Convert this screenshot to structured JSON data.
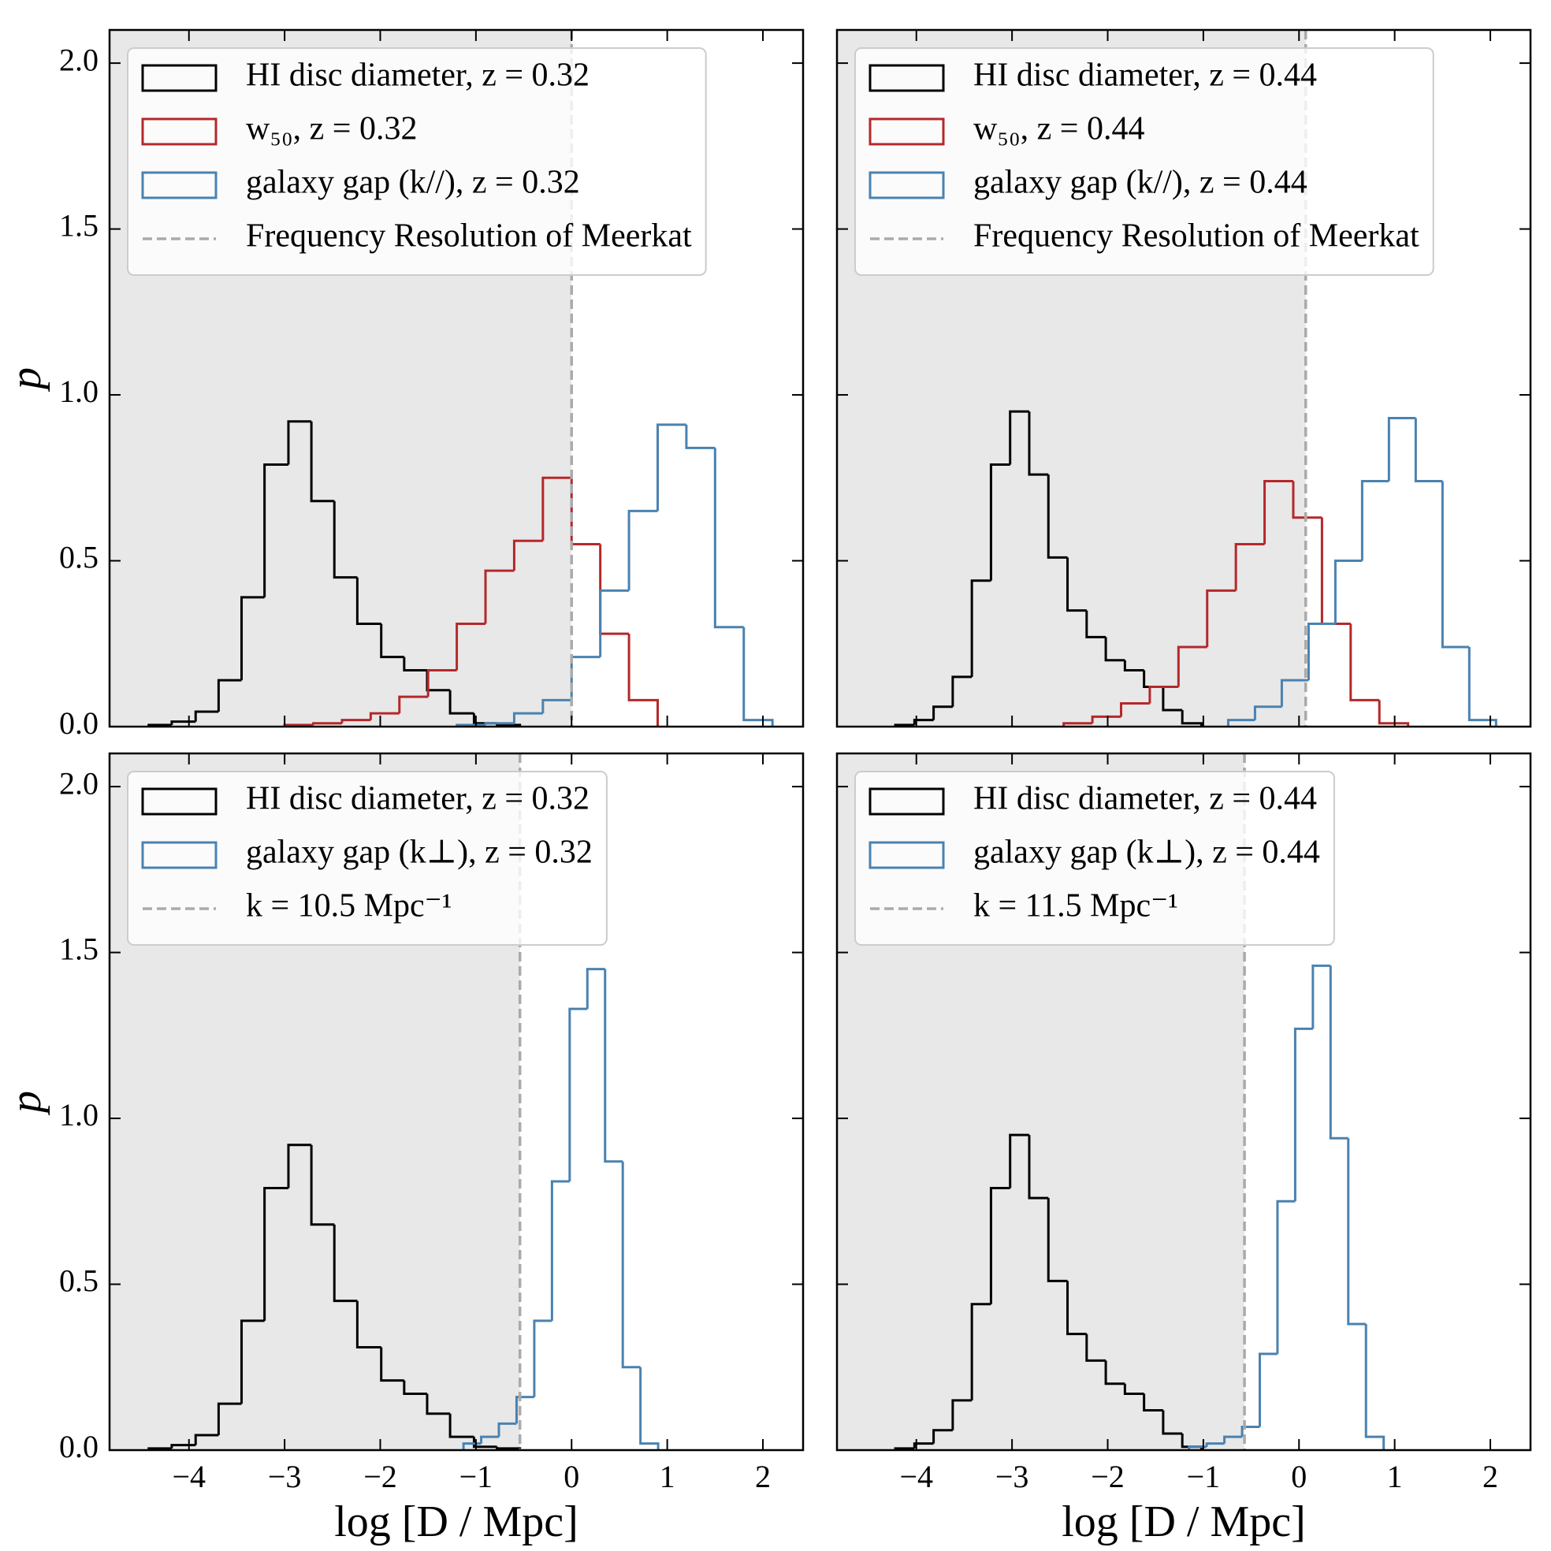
{
  "chart_data": [
    {
      "type": "histogram",
      "xlim": [
        -4.83,
        2.42
      ],
      "ylim": [
        0,
        2.1
      ],
      "xticks": [
        -4,
        -3,
        -2,
        -1,
        0,
        1,
        2
      ],
      "xtick_labels": false,
      "yticks": [
        {
          "value": 0,
          "label": "0.0"
        },
        {
          "value": 0.5,
          "label": "0.5"
        },
        {
          "value": 1,
          "label": "1.0"
        },
        {
          "value": 1.5,
          "label": "1.5"
        },
        {
          "value": 2,
          "label": "2.0"
        }
      ],
      "ytick_labels": true,
      "ylabel": "p",
      "legend": "upper left",
      "series": [
        {
          "name": "HI disc diameter, z = 0.32",
          "color": "#000000",
          "bins": [
            -4.42,
            -4.18,
            -3.93,
            -3.69,
            -3.45,
            -3.21,
            -2.96,
            -2.72,
            -2.48,
            -2.24,
            -1.99,
            -1.75,
            -1.51,
            -1.27,
            -1.02,
            -0.78,
            -0.54
          ],
          "values": [
            0.005,
            0.015,
            0.045,
            0.14,
            0.39,
            0.79,
            0.92,
            0.68,
            0.45,
            0.31,
            0.21,
            0.17,
            0.11,
            0.04,
            0.01,
            0.005
          ]
        },
        {
          "name": "w₅₀,  z = 0.32",
          "color": "#b5282a",
          "bins": [
            -3.0,
            -2.7,
            -2.4,
            -2.1,
            -1.8,
            -1.5,
            -1.2,
            -0.9,
            -0.6,
            -0.3,
            0,
            0.3,
            0.6,
            0.9
          ],
          "values": [
            0.005,
            0.01,
            0.02,
            0.04,
            0.09,
            0.17,
            0.31,
            0.47,
            0.56,
            0.75,
            0.55,
            0.28,
            0.08
          ]
        },
        {
          "name": "galaxy gap (k//), z = 0.32",
          "color": "#4a82b0",
          "bins": [
            -1.2,
            -0.9,
            -0.6,
            -0.3,
            0,
            0.3,
            0.6,
            0.9,
            1.2,
            1.5,
            1.8,
            2.1
          ],
          "values": [
            0.005,
            0.01,
            0.04,
            0.08,
            0.21,
            0.41,
            0.65,
            0.91,
            0.84,
            0.3,
            0.02
          ]
        }
      ],
      "vline": {
        "x": 0,
        "label": "Frequency Resolution of Meerkat",
        "color": "#aaaaaa"
      },
      "shade_left": true
    },
    {
      "type": "histogram",
      "xlim": [
        -4.83,
        2.42
      ],
      "ylim": [
        0,
        2.1
      ],
      "xticks": [
        -4,
        -3,
        -2,
        -1,
        0,
        1,
        2
      ],
      "xtick_labels": false,
      "yticks": [
        0,
        0.5,
        1,
        1.5,
        2
      ],
      "ytick_labels": false,
      "legend": "upper left",
      "series": [
        {
          "name": "HI disc diameter, z = 0.44",
          "color": "#000000",
          "bins": [
            -4.22,
            -4.02,
            -3.82,
            -3.62,
            -3.42,
            -3.22,
            -3.02,
            -2.82,
            -2.62,
            -2.42,
            -2.22,
            -2.02,
            -1.82,
            -1.62,
            -1.42,
            -1.22,
            -1.02
          ],
          "values": [
            0.005,
            0.02,
            0.06,
            0.15,
            0.44,
            0.79,
            0.95,
            0.76,
            0.51,
            0.35,
            0.27,
            0.2,
            0.17,
            0.12,
            0.05,
            0.01
          ]
        },
        {
          "name": "w₅₀,  z = 0.44",
          "color": "#b5282a",
          "bins": [
            -2.46,
            -2.16,
            -1.86,
            -1.56,
            -1.26,
            -0.96,
            -0.66,
            -0.36,
            -0.06,
            0.24,
            0.54,
            0.84,
            1.14
          ],
          "values": [
            0.01,
            0.03,
            0.07,
            0.12,
            0.24,
            0.41,
            0.55,
            0.74,
            0.63,
            0.31,
            0.08,
            0.01
          ]
        },
        {
          "name": "galaxy gap (k//), z = 0.44",
          "color": "#4a82b0",
          "bins": [
            -0.74,
            -0.46,
            -0.18,
            0.1,
            0.38,
            0.66,
            0.94,
            1.22,
            1.5,
            1.78,
            2.06
          ],
          "values": [
            0.02,
            0.06,
            0.14,
            0.31,
            0.5,
            0.74,
            0.93,
            0.74,
            0.24,
            0.02
          ]
        }
      ],
      "vline": {
        "x": 0.07,
        "label": "Frequency Resolution of Meerkat",
        "color": "#aaaaaa"
      },
      "shade_left": true
    },
    {
      "type": "histogram",
      "xlim": [
        -4.83,
        2.42
      ],
      "ylim": [
        0,
        2.1
      ],
      "xticks": [
        {
          "value": -4,
          "label": "−4"
        },
        {
          "value": -3,
          "label": "−3"
        },
        {
          "value": -2,
          "label": "−2"
        },
        {
          "value": -1,
          "label": "−1"
        },
        0,
        1,
        2
      ],
      "xtick_labels": true,
      "yticks": [
        {
          "value": 0,
          "label": "0.0"
        },
        {
          "value": 0.5,
          "label": "0.5"
        },
        {
          "value": 1,
          "label": "1.0"
        },
        {
          "value": 1.5,
          "label": "1.5"
        },
        {
          "value": 2,
          "label": "2.0"
        }
      ],
      "ytick_labels": true,
      "xlabel": "log [D / Mpc]",
      "ylabel": "p",
      "legend": "upper left",
      "series": [
        {
          "name": "HI disc diameter, z = 0.32",
          "color": "#000000",
          "bins": [
            -4.42,
            -4.18,
            -3.93,
            -3.69,
            -3.45,
            -3.21,
            -2.96,
            -2.72,
            -2.48,
            -2.24,
            -1.99,
            -1.75,
            -1.51,
            -1.27,
            -1.02,
            -0.78,
            -0.54
          ],
          "values": [
            0.005,
            0.015,
            0.045,
            0.14,
            0.39,
            0.79,
            0.92,
            0.68,
            0.45,
            0.31,
            0.21,
            0.17,
            0.11,
            0.04,
            0.01,
            0.005
          ]
        },
        {
          "name": "galaxy gap (k⊥), z = 0.32",
          "color": "#4a82b0",
          "bins": [
            -1.13,
            -0.945,
            -0.76,
            -0.575,
            -0.39,
            -0.205,
            -0.02,
            0.165,
            0.35,
            0.535,
            0.72,
            0.905
          ],
          "values": [
            0.02,
            0.04,
            0.08,
            0.16,
            0.39,
            0.81,
            1.33,
            1.45,
            0.87,
            0.25,
            0.02
          ]
        }
      ],
      "vline": {
        "x": -0.54,
        "label": "k = 10.5 Mpc⁻¹",
        "color": "#aaaaaa"
      },
      "shade_left": true
    },
    {
      "type": "histogram",
      "xlim": [
        -4.83,
        2.42
      ],
      "ylim": [
        0,
        2.1
      ],
      "xticks": [
        {
          "value": -4,
          "label": "−4"
        },
        {
          "value": -3,
          "label": "−3"
        },
        {
          "value": -2,
          "label": "−2"
        },
        {
          "value": -1,
          "label": "−1"
        },
        0,
        1,
        2
      ],
      "xtick_labels": true,
      "yticks": [
        0,
        0.5,
        1,
        1.5,
        2
      ],
      "ytick_labels": false,
      "xlabel": "log [D / Mpc]",
      "legend": "upper left",
      "series": [
        {
          "name": "HI disc diameter, z = 0.44",
          "color": "#000000",
          "bins": [
            -4.22,
            -4.02,
            -3.82,
            -3.62,
            -3.42,
            -3.22,
            -3.02,
            -2.82,
            -2.62,
            -2.42,
            -2.22,
            -2.02,
            -1.82,
            -1.62,
            -1.42,
            -1.22,
            -1.02
          ],
          "values": [
            0.005,
            0.02,
            0.06,
            0.15,
            0.44,
            0.79,
            0.95,
            0.76,
            0.51,
            0.35,
            0.27,
            0.2,
            0.17,
            0.12,
            0.05,
            0.01
          ]
        },
        {
          "name": "galaxy gap (k⊥), z = 0.44",
          "color": "#4a82b0",
          "bins": [
            -1.15,
            -0.965,
            -0.78,
            -0.595,
            -0.41,
            -0.225,
            -0.04,
            0.145,
            0.33,
            0.515,
            0.7,
            0.885
          ],
          "values": [
            0.01,
            0.02,
            0.04,
            0.07,
            0.29,
            0.75,
            1.27,
            1.46,
            0.94,
            0.38,
            0.04
          ]
        }
      ],
      "vline": {
        "x": -0.57,
        "label": "k = 11.5 Mpc⁻¹",
        "color": "#aaaaaa"
      },
      "shade_left": true
    }
  ]
}
